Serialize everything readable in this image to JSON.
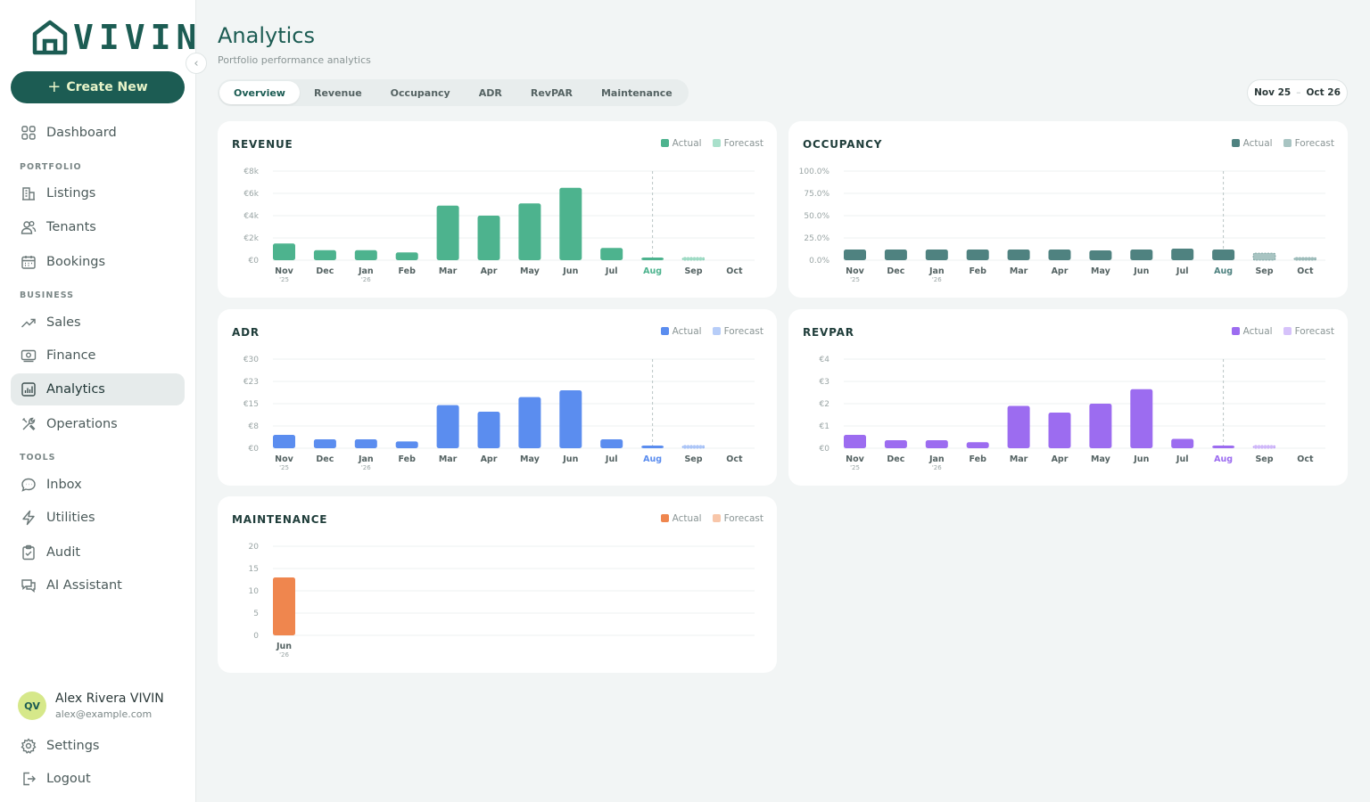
{
  "brand": {
    "name": "VIVIN",
    "accent": "#1c5c53"
  },
  "sidebar": {
    "create_label": "Create New",
    "items": [
      {
        "label": "Dashboard",
        "icon": "grid-icon"
      },
      {
        "label": "Listings",
        "icon": "building-icon"
      },
      {
        "label": "Tenants",
        "icon": "users-icon"
      },
      {
        "label": "Bookings",
        "icon": "calendar-icon"
      },
      {
        "label": "Sales",
        "icon": "trend-icon"
      },
      {
        "label": "Finance",
        "icon": "cash-icon"
      },
      {
        "label": "Analytics",
        "icon": "bar-chart-icon"
      },
      {
        "label": "Operations",
        "icon": "tools-icon"
      },
      {
        "label": "Inbox",
        "icon": "chat-icon"
      },
      {
        "label": "Utilities",
        "icon": "bolt-icon"
      },
      {
        "label": "Audit",
        "icon": "clipboard-icon"
      },
      {
        "label": "AI Assistant",
        "icon": "messages-icon"
      }
    ],
    "sections": [
      "PORTFOLIO",
      "BUSINESS",
      "TOOLS"
    ],
    "active": "Analytics",
    "user": {
      "initials": "QV",
      "name": "Alex Rivera VIVIN",
      "email": "alex@example.com"
    },
    "settings_label": "Settings",
    "logout_label": "Logout"
  },
  "header": {
    "title": "Analytics",
    "subtitle": "Portfolio performance analytics",
    "tabs": [
      "Overview",
      "Revenue",
      "Occupancy",
      "ADR",
      "RevPAR",
      "Maintenance"
    ],
    "active_tab": "Overview",
    "date_from": "Nov 25",
    "date_sep": "–",
    "date_to": "Oct 26"
  },
  "legend": {
    "actual": "Actual",
    "forecast": "Forecast"
  },
  "chart_data": [
    {
      "type": "bar",
      "title": "REVENUE",
      "color": "#4db38e",
      "forecast_color": "#a9e0cb",
      "categories": [
        "Nov",
        "Dec",
        "Jan",
        "Feb",
        "Mar",
        "Apr",
        "May",
        "Jun",
        "Jul",
        "Aug",
        "Sep",
        "Oct"
      ],
      "year_labels": [
        "'25",
        "",
        "'26",
        "",
        "",
        "",
        "",
        "",
        "",
        "",
        "",
        ""
      ],
      "current": "Aug",
      "yticks": [
        "€0",
        "€2k",
        "€4k",
        "€6k",
        "€8k"
      ],
      "ylim": [
        0,
        8000
      ],
      "series": [
        {
          "name": "Actual",
          "values": [
            1500,
            900,
            900,
            700,
            4900,
            4000,
            5100,
            6500,
            1100,
            200,
            null,
            null
          ]
        },
        {
          "name": "Forecast",
          "values": [
            null,
            null,
            null,
            null,
            null,
            null,
            null,
            null,
            null,
            null,
            150,
            0
          ]
        }
      ]
    },
    {
      "type": "bar",
      "title": "OCCUPANCY",
      "color": "#4f8280",
      "forecast_color": "#a8c4c2",
      "categories": [
        "Nov",
        "Dec",
        "Jan",
        "Feb",
        "Mar",
        "Apr",
        "May",
        "Jun",
        "Jul",
        "Aug",
        "Sep",
        "Oct"
      ],
      "year_labels": [
        "'25",
        "",
        "'26",
        "",
        "",
        "",
        "",
        "",
        "",
        "",
        "",
        ""
      ],
      "current": "Aug",
      "yticks": [
        "0.0%",
        "25.0%",
        "50.0%",
        "75.0%",
        "100.0%"
      ],
      "ylim": [
        0,
        100
      ],
      "series": [
        {
          "name": "Actual",
          "values": [
            12,
            12,
            12,
            12,
            12,
            12,
            11,
            12,
            13,
            12,
            null,
            null
          ]
        },
        {
          "name": "Forecast",
          "values": [
            null,
            null,
            null,
            null,
            null,
            null,
            null,
            null,
            null,
            null,
            8,
            3
          ]
        }
      ]
    },
    {
      "type": "bar",
      "title": "ADR",
      "color": "#5b8def",
      "forecast_color": "#b7cdf8",
      "categories": [
        "Nov",
        "Dec",
        "Jan",
        "Feb",
        "Mar",
        "Apr",
        "May",
        "Jun",
        "Jul",
        "Aug",
        "Sep",
        "Oct"
      ],
      "year_labels": [
        "'25",
        "",
        "'26",
        "",
        "",
        "",
        "",
        "",
        "",
        "",
        "",
        ""
      ],
      "current": "Aug",
      "yticks": [
        "€0",
        "€8",
        "€15",
        "€23",
        "€30"
      ],
      "ylim": [
        0,
        30
      ],
      "series": [
        {
          "name": "Actual",
          "values": [
            4.5,
            3,
            3,
            2.3,
            14.5,
            12.3,
            17.2,
            19.5,
            3,
            0.8,
            null,
            null
          ]
        },
        {
          "name": "Forecast",
          "values": [
            null,
            null,
            null,
            null,
            null,
            null,
            null,
            null,
            null,
            null,
            0.6,
            0
          ]
        }
      ]
    },
    {
      "type": "bar",
      "title": "REVPAR",
      "color": "#9c6cf0",
      "forecast_color": "#d6c2fa",
      "categories": [
        "Nov",
        "Dec",
        "Jan",
        "Feb",
        "Mar",
        "Apr",
        "May",
        "Jun",
        "Jul",
        "Aug",
        "Sep",
        "Oct"
      ],
      "year_labels": [
        "'25",
        "",
        "'26",
        "",
        "",
        "",
        "",
        "",
        "",
        "",
        "",
        ""
      ],
      "current": "Aug",
      "yticks": [
        "€0",
        "€1",
        "€2",
        "€3",
        "€4"
      ],
      "ylim": [
        0,
        4
      ],
      "series": [
        {
          "name": "Actual",
          "values": [
            0.6,
            0.36,
            0.36,
            0.27,
            1.9,
            1.6,
            2.0,
            2.65,
            0.42,
            0.1,
            null,
            null
          ]
        },
        {
          "name": "Forecast",
          "values": [
            null,
            null,
            null,
            null,
            null,
            null,
            null,
            null,
            null,
            null,
            0.06,
            0
          ]
        }
      ]
    },
    {
      "type": "bar",
      "title": "MAINTENANCE",
      "color": "#ef864e",
      "forecast_color": "#f8c6a9",
      "categories": [
        "Jun"
      ],
      "year_labels": [
        "'26"
      ],
      "current": "",
      "yticks": [
        "0",
        "5",
        "10",
        "15",
        "20"
      ],
      "ylim": [
        0,
        20
      ],
      "series": [
        {
          "name": "Actual",
          "values": [
            13
          ]
        }
      ]
    }
  ]
}
